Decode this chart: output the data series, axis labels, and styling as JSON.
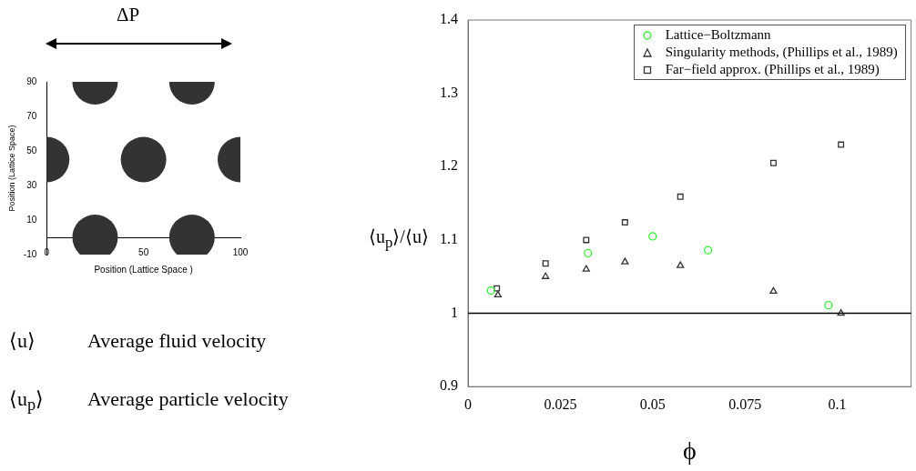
{
  "chart_data": [
    {
      "type": "bubble",
      "series": [
        {
          "color": "#333333",
          "x": [
            25,
            75,
            0,
            50,
            100,
            25,
            75
          ],
          "values": [
            90,
            90,
            45,
            45,
            45,
            0,
            0
          ],
          "sizes": [
            1,
            1,
            1,
            1,
            1,
            1,
            1
          ]
        }
      ],
      "title": "ΔP",
      "xlabel": "Position (Lattice Space )",
      "ylabel": "Position (Lattice Space)",
      "xlim": [
        0,
        100
      ],
      "xticks": [
        0,
        50,
        100
      ],
      "ylim": [
        -10,
        90
      ],
      "yticks": [
        -10,
        10,
        30,
        50,
        70,
        90
      ],
      "annotations": [
        "⟨u⟩",
        "Average fluid velocity",
        "⟨u$_{p}$⟩",
        "Average particle velocity"
      ]
    },
    {
      "type": "scatter",
      "xlabel": "ϕ",
      "ylabel": "⟨u$_{p}$⟩/⟨u⟩",
      "xlim": [
        0,
        0.12
      ],
      "xticks": [
        0,
        0.025,
        0.05,
        0.075,
        0.1
      ],
      "ylim": [
        0.9,
        1.4
      ],
      "yticks": [
        0.9,
        1,
        1.1,
        1.2,
        1.3,
        1.4
      ],
      "grid": false,
      "legend": "top right",
      "ref_lines": [
        {
          "axis": "y",
          "value": 1,
          "color": "#000000"
        }
      ],
      "series": [
        {
          "name": "Lattice−Boltzmann",
          "color": "#33ee33",
          "marker": "circle",
          "x": [
            0.0062,
            0.0325,
            0.05,
            0.065,
            0.0976
          ],
          "values": [
            1.031,
            1.082,
            1.105,
            1.086,
            1.011
          ]
        },
        {
          "name": "Singularity methods, (Phillips et al., 1989)",
          "color": "#333333",
          "marker": "triangle",
          "x": [
            0.0081,
            0.021,
            0.032,
            0.0425,
            0.0575,
            0.0827,
            0.101
          ],
          "values": [
            1.025,
            1.05,
            1.06,
            1.07,
            1.065,
            1.03,
            1.0
          ]
        },
        {
          "name": "Far−field approx. (Phillips et al., 1989)",
          "color": "#333333",
          "marker": "square",
          "x": [
            0.0078,
            0.021,
            0.032,
            0.0425,
            0.0575,
            0.0827,
            0.101
          ],
          "values": [
            1.034,
            1.068,
            1.1,
            1.124,
            1.159,
            1.205,
            1.23
          ]
        }
      ]
    }
  ]
}
